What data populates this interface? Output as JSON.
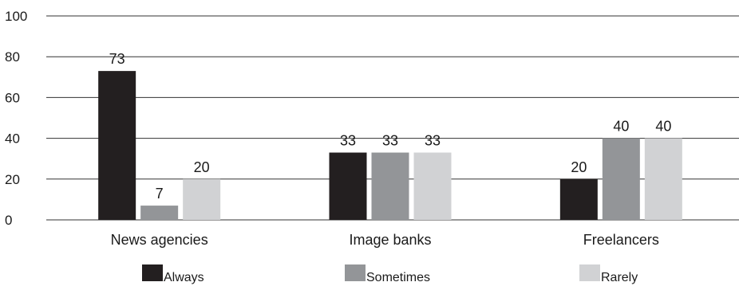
{
  "chart_data": {
    "type": "bar",
    "categories": [
      "News agencies",
      "Image banks",
      "Freelancers"
    ],
    "series": [
      {
        "name": "Always",
        "values": [
          73,
          33,
          20
        ],
        "color": "#231f20"
      },
      {
        "name": "Sometimes",
        "values": [
          7,
          33,
          40
        ],
        "color": "#939598"
      },
      {
        "name": "Rarely",
        "values": [
          20,
          33,
          40
        ],
        "color": "#d1d2d4"
      }
    ],
    "ylim": [
      0,
      100
    ],
    "yticks": [
      0,
      20,
      40,
      60,
      80,
      100
    ],
    "grid": true,
    "legend_position": "bottom",
    "data_labels": true,
    "title": "",
    "xlabel": "",
    "ylabel": ""
  }
}
